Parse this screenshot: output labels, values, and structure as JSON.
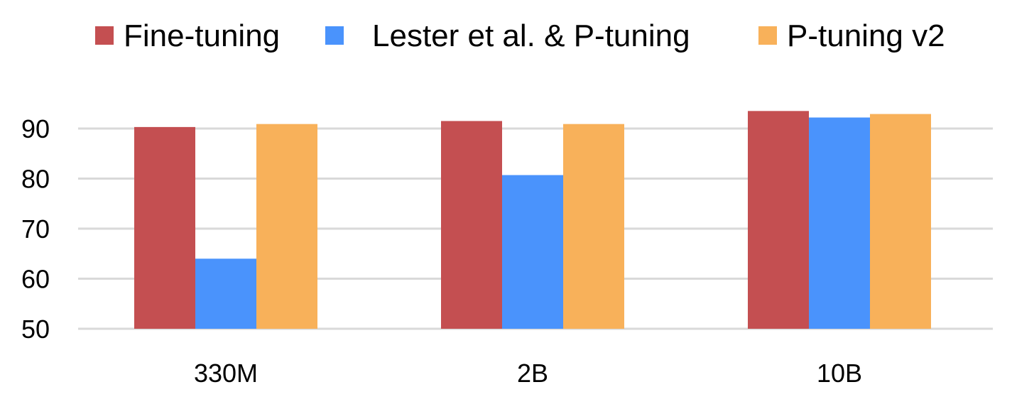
{
  "chart_data": {
    "type": "bar",
    "categories": [
      "330M",
      "2B",
      "10B"
    ],
    "series": [
      {
        "name": "Fine-tuning",
        "color": "#c44f51",
        "values": [
          90.3,
          91.5,
          93.5
        ]
      },
      {
        "name": "Lester et al. & P-tuning",
        "color": "#4a93fc",
        "values": [
          64.0,
          80.7,
          92.2
        ]
      },
      {
        "name": "P-tuning v2",
        "color": "#f8b15a",
        "values": [
          90.9,
          90.9,
          92.9
        ]
      }
    ],
    "yticks": [
      50,
      60,
      70,
      80,
      90
    ],
    "ylim": [
      50,
      95
    ],
    "grid": true,
    "legend_position": "top",
    "title": "",
    "xlabel": "",
    "ylabel": ""
  }
}
